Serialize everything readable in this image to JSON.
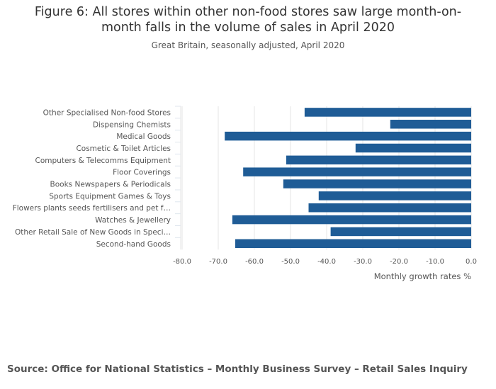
{
  "chart_data": {
    "type": "bar",
    "orientation": "horizontal",
    "title": "Figure 6: All stores within other non-food stores saw large month-on-month falls in the volume of sales in April 2020",
    "title_lines": [
      "Figure 6: All stores within other non-food stores saw large month-on-",
      "month falls in the volume of sales in April 2020"
    ],
    "subtitle": "Great Britain, seasonally adjusted, April 2020",
    "xlabel": "Monthly growth rates %",
    "ylabel": "",
    "xlim": [
      -80,
      0
    ],
    "xticks": [
      -80,
      -70,
      -60,
      -50,
      -40,
      -30,
      -20,
      -10,
      0
    ],
    "xtick_labels": [
      "-80.0",
      "-70.0",
      "-60.0",
      "-50.0",
      "-40.0",
      "-30.0",
      "-20.0",
      "-10.0",
      "0.0"
    ],
    "categories": [
      "Other Specialised Non-food Stores",
      "Dispensing Chemists",
      "Medical Goods",
      "Cosmetic & Toilet Articles",
      "Computers & Telecomms Equipment",
      "Floor Coverings",
      "Books Newspapers & Periodicals",
      "Sports Equipment Games & Toys",
      "Flowers plants seeds fertilisers and pet f…",
      "Watches & Jewellery",
      "Other Retail Sale of New Goods in Speci…",
      "Second-hand Goods"
    ],
    "values": [
      -46.1,
      -22.4,
      -68.2,
      -32.0,
      -51.2,
      -63.1,
      -52.0,
      -42.2,
      -45.0,
      -66.1,
      -38.9,
      -65.3
    ],
    "bar_color": "#1f5c96",
    "grid": true
  },
  "source": "Source: Office for National Statistics – Monthly Business Survey – Retail Sales Inquiry"
}
